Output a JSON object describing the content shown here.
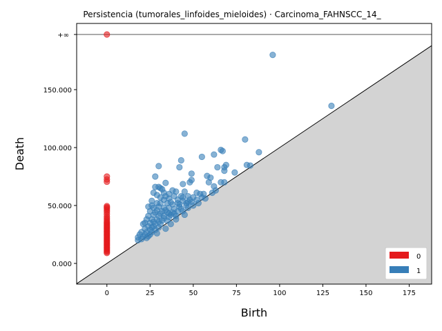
{
  "chart_data": {
    "type": "scatter",
    "title": "Persistencia (tumorales_linfoides_mieloides) · Carcinoma_FAHNSCC_14_",
    "xlabel": "Birth",
    "ylabel": "Death",
    "xlim": [
      -17.5,
      188
    ],
    "ylim": [
      -17000,
      200000
    ],
    "x_ticks": [
      0,
      25,
      50,
      75,
      100,
      125,
      150,
      175
    ],
    "x_tick_labels": [
      "0",
      "25",
      "50",
      "75",
      "100",
      "125",
      "150",
      "175"
    ],
    "y_ticks": [
      0,
      50000,
      100000,
      150000
    ],
    "y_tick_labels": [
      "0.000",
      "50.000",
      "100.000",
      "150.000"
    ],
    "infinity_label": "+∞",
    "infinity_y": 200000,
    "diagonal": true,
    "grid": false,
    "legend_position": "bottom-right",
    "colors": {
      "0": "#e41a1c",
      "1": "#377eb8",
      "diagonal_fill": "#d3d3d3"
    },
    "series": [
      {
        "name": "0",
        "points": [
          [
            0,
            200000
          ],
          [
            0,
            75000
          ],
          [
            0,
            72500
          ],
          [
            0,
            70500
          ],
          [
            0,
            49500
          ],
          [
            0,
            48500
          ],
          [
            0,
            47500
          ],
          [
            0,
            46000
          ],
          [
            0,
            44500
          ],
          [
            0,
            42500
          ],
          [
            0,
            40500
          ],
          [
            0,
            39000
          ],
          [
            0,
            37500
          ],
          [
            0,
            36000
          ],
          [
            0,
            35000
          ],
          [
            0,
            34000
          ],
          [
            0,
            33000
          ],
          [
            0,
            32000
          ],
          [
            0,
            31000
          ],
          [
            0,
            30000
          ],
          [
            0,
            29000
          ],
          [
            0,
            28000
          ],
          [
            0,
            27000
          ],
          [
            0,
            26000
          ],
          [
            0,
            25000
          ],
          [
            0,
            24000
          ],
          [
            0,
            23000
          ],
          [
            0,
            22000
          ],
          [
            0,
            21000
          ],
          [
            0,
            20000
          ],
          [
            0,
            19000
          ],
          [
            0,
            18000
          ],
          [
            0,
            17000
          ],
          [
            0,
            16000
          ],
          [
            0,
            15000
          ],
          [
            0,
            14000
          ],
          [
            0,
            13000
          ],
          [
            0,
            12000
          ],
          [
            0,
            11000
          ],
          [
            0,
            10000
          ],
          [
            0,
            9000
          ]
        ]
      },
      {
        "name": "1",
        "points": [
          [
            96,
            180000
          ],
          [
            130,
            136000
          ],
          [
            45,
            112000
          ],
          [
            80,
            107000
          ],
          [
            66,
            98000
          ],
          [
            67,
            97000
          ],
          [
            88,
            96000
          ],
          [
            62,
            94000
          ],
          [
            55,
            92000
          ],
          [
            43,
            89000
          ],
          [
            69,
            85000
          ],
          [
            81,
            85000
          ],
          [
            83,
            84500
          ],
          [
            30,
            84000
          ],
          [
            42,
            83000
          ],
          [
            64,
            83000
          ],
          [
            68,
            83000
          ],
          [
            68,
            80000
          ],
          [
            74,
            78500
          ],
          [
            49,
            77500
          ],
          [
            58,
            75500
          ],
          [
            60,
            74000
          ],
          [
            28,
            75000
          ],
          [
            49,
            72000
          ],
          [
            66,
            70000
          ],
          [
            68,
            70000
          ],
          [
            59,
            70000
          ],
          [
            48,
            70000
          ],
          [
            34,
            69500
          ],
          [
            44,
            68500
          ],
          [
            62,
            66500
          ],
          [
            28,
            66000
          ],
          [
            30,
            66000
          ],
          [
            31,
            65000
          ],
          [
            32,
            64000
          ],
          [
            38,
            63000
          ],
          [
            63,
            63000
          ],
          [
            27,
            61000
          ],
          [
            40,
            62000
          ],
          [
            45,
            62000
          ],
          [
            52,
            61000
          ],
          [
            54,
            60000
          ],
          [
            56,
            60000
          ],
          [
            61,
            61000
          ],
          [
            47,
            58000
          ],
          [
            50,
            57000
          ],
          [
            36,
            56000
          ],
          [
            33,
            55000
          ],
          [
            41,
            55000
          ],
          [
            44,
            54000
          ],
          [
            26,
            54000
          ],
          [
            29,
            52000
          ],
          [
            31,
            52000
          ],
          [
            35,
            52000
          ],
          [
            38,
            51000
          ],
          [
            42,
            51000
          ],
          [
            46,
            52000
          ],
          [
            49,
            53000
          ],
          [
            53,
            52000
          ],
          [
            24,
            49000
          ],
          [
            27,
            48000
          ],
          [
            30,
            49000
          ],
          [
            33,
            48000
          ],
          [
            36,
            48000
          ],
          [
            39,
            47000
          ],
          [
            43,
            47000
          ],
          [
            47,
            48000
          ],
          [
            25,
            45000
          ],
          [
            28,
            44000
          ],
          [
            32,
            45000
          ],
          [
            35,
            44000
          ],
          [
            38,
            44000
          ],
          [
            41,
            45000
          ],
          [
            44,
            45000
          ],
          [
            24,
            41000
          ],
          [
            27,
            42000
          ],
          [
            30,
            41000
          ],
          [
            33,
            41000
          ],
          [
            36,
            40000
          ],
          [
            40,
            41000
          ],
          [
            23,
            38000
          ],
          [
            26,
            38000
          ],
          [
            29,
            38000
          ],
          [
            32,
            37000
          ],
          [
            35,
            37000
          ],
          [
            22,
            35000
          ],
          [
            25,
            35000
          ],
          [
            28,
            34000
          ],
          [
            31,
            34000
          ],
          [
            21,
            34000
          ],
          [
            24,
            32000
          ],
          [
            27,
            32000
          ],
          [
            30,
            31000
          ],
          [
            22,
            30000
          ],
          [
            25,
            29000
          ],
          [
            28,
            29000
          ],
          [
            20,
            27000
          ],
          [
            23,
            27000
          ],
          [
            26,
            27000
          ],
          [
            19,
            25000
          ],
          [
            22,
            25000
          ],
          [
            25,
            25000
          ],
          [
            18,
            22500
          ],
          [
            21,
            23000
          ],
          [
            23,
            22000
          ],
          [
            18,
            20000
          ],
          [
            20,
            21000
          ],
          [
            24,
            23500
          ],
          [
            29,
            26000
          ],
          [
            34,
            30000
          ],
          [
            37,
            34000
          ],
          [
            40,
            38000
          ],
          [
            45,
            42000
          ],
          [
            50,
            50000
          ],
          [
            52,
            55000
          ],
          [
            48,
            55000
          ],
          [
            46,
            50000
          ],
          [
            39,
            58000
          ],
          [
            43,
            58000
          ],
          [
            55,
            57000
          ],
          [
            57,
            56000
          ],
          [
            34,
            58000
          ],
          [
            36,
            60000
          ],
          [
            31,
            57000
          ],
          [
            29,
            59000
          ],
          [
            33,
            61000
          ],
          [
            37,
            53000
          ],
          [
            42,
            49000
          ],
          [
            26,
            50000
          ],
          [
            29,
            46000
          ],
          [
            31,
            43000
          ],
          [
            34,
            46000
          ],
          [
            37,
            42000
          ],
          [
            26,
            31000
          ],
          [
            27,
            36000
          ],
          [
            30,
            36000
          ],
          [
            33,
            39000
          ],
          [
            36,
            43000
          ],
          [
            39,
            43000
          ],
          [
            41,
            52000
          ],
          [
            44,
            57000
          ],
          [
            47,
            53000
          ]
        ]
      }
    ]
  }
}
